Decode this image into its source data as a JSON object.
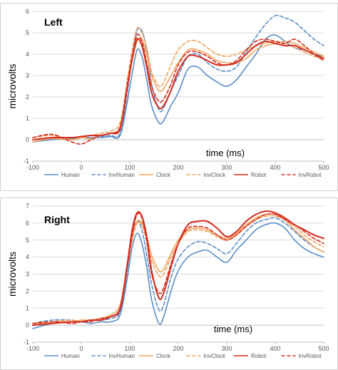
{
  "chart_data": [
    {
      "type": "line",
      "title": "Left",
      "xlabel": "time (ms)",
      "ylabel": "microvolts",
      "xlim": [
        -100,
        500
      ],
      "ylim": [
        -1,
        6
      ],
      "x_ticks": [
        "-100",
        "0",
        "100",
        "200",
        "300",
        "400",
        "500"
      ],
      "y_ticks": [
        "-1",
        "0",
        "1",
        "2",
        "3",
        "4",
        "5",
        "6"
      ],
      "grid": "horizontal",
      "legend_position": "bottom",
      "series": [
        {
          "name": "Human",
          "color": "#5b8ec7",
          "dash": "solid",
          "x": [
            -100,
            -60,
            -20,
            0,
            20,
            40,
            60,
            80,
            95,
            105,
            115,
            125,
            135,
            145,
            160,
            170,
            185,
            200,
            220,
            240,
            260,
            280,
            300,
            320,
            340,
            360,
            380,
            400,
            420,
            440,
            460,
            480,
            500
          ],
          "y": [
            -0.1,
            0,
            0.05,
            0.1,
            0.1,
            0.1,
            0.15,
            0.2,
            1.8,
            3.1,
            4.2,
            3.9,
            2.8,
            1.6,
            0.8,
            0.9,
            1.6,
            2.2,
            3.3,
            3.4,
            3.0,
            2.7,
            2.5,
            2.8,
            3.4,
            4.0,
            4.7,
            4.9,
            4.6,
            4.3,
            4.2,
            4.0,
            3.9
          ]
        },
        {
          "name": "InvHuman",
          "color": "#5b8ec7",
          "dash": "dashed",
          "x": [
            -100,
            -60,
            -20,
            0,
            20,
            40,
            60,
            80,
            95,
            105,
            115,
            125,
            135,
            145,
            160,
            170,
            185,
            200,
            220,
            240,
            260,
            280,
            300,
            320,
            340,
            360,
            380,
            400,
            420,
            440,
            460,
            480,
            500
          ],
          "y": [
            0,
            0.1,
            0.1,
            0.15,
            0.2,
            0.15,
            0.2,
            0.3,
            2.2,
            3.8,
            5.1,
            5.1,
            4.2,
            2.6,
            1.4,
            1.5,
            2.3,
            3.0,
            3.9,
            4.0,
            3.6,
            3.3,
            3.2,
            3.4,
            4.1,
            4.8,
            5.4,
            5.8,
            5.7,
            5.5,
            5.1,
            4.7,
            4.4
          ]
        },
        {
          "name": "Clock",
          "color": "#f0a45e",
          "dash": "solid",
          "x": [
            -100,
            -60,
            -20,
            0,
            20,
            40,
            60,
            80,
            95,
            105,
            115,
            125,
            135,
            145,
            160,
            170,
            185,
            200,
            220,
            240,
            260,
            280,
            300,
            320,
            340,
            360,
            380,
            400,
            420,
            440,
            460,
            480,
            500
          ],
          "y": [
            -0.1,
            0.05,
            0,
            0.1,
            0.05,
            0.2,
            0.3,
            0.6,
            2.4,
            3.7,
            4.6,
            4.7,
            4.0,
            3.0,
            2.3,
            2.4,
            3.0,
            3.6,
            4.2,
            4.2,
            4.0,
            3.7,
            3.6,
            3.6,
            3.8,
            4.2,
            4.4,
            4.5,
            4.6,
            4.5,
            4.3,
            4.1,
            3.9
          ]
        },
        {
          "name": "InvClock",
          "color": "#f0a45e",
          "dash": "dashed",
          "x": [
            -100,
            -60,
            -20,
            0,
            20,
            40,
            60,
            80,
            95,
            105,
            115,
            125,
            135,
            145,
            160,
            170,
            185,
            200,
            220,
            240,
            260,
            280,
            300,
            320,
            340,
            360,
            380,
            400,
            420,
            440,
            460,
            480,
            500
          ],
          "y": [
            0.1,
            0.2,
            0,
            0.1,
            0.2,
            0.3,
            0.4,
            0.8,
            2.8,
            4.2,
            5.2,
            5.0,
            4.3,
            3.2,
            2.5,
            2.7,
            3.5,
            4.2,
            4.6,
            4.6,
            4.3,
            4.0,
            3.9,
            4.0,
            4.2,
            4.4,
            4.5,
            4.6,
            4.5,
            4.3,
            4.1,
            3.9,
            3.8
          ]
        },
        {
          "name": "Robot",
          "color": "#d42b1e",
          "dash": "solid",
          "x": [
            -100,
            -60,
            -20,
            0,
            20,
            40,
            60,
            80,
            95,
            105,
            115,
            125,
            135,
            145,
            160,
            170,
            185,
            200,
            220,
            240,
            260,
            280,
            300,
            320,
            340,
            360,
            380,
            400,
            420,
            440,
            460,
            480,
            500
          ],
          "y": [
            0,
            0.1,
            0.1,
            0.15,
            0.2,
            0.2,
            0.3,
            0.5,
            2.5,
            3.8,
            4.7,
            4.4,
            3.4,
            2.2,
            1.5,
            1.6,
            2.3,
            3.2,
            3.9,
            3.9,
            3.7,
            3.5,
            3.5,
            3.6,
            4.0,
            4.4,
            4.6,
            4.5,
            4.4,
            4.4,
            4.2,
            4.0,
            3.8
          ]
        },
        {
          "name": "InvRobot",
          "color": "#d42b1e",
          "dash": "dashed",
          "x": [
            -100,
            -60,
            -20,
            0,
            20,
            40,
            60,
            80,
            95,
            105,
            115,
            125,
            135,
            145,
            160,
            170,
            185,
            200,
            220,
            240,
            260,
            280,
            300,
            320,
            340,
            360,
            380,
            400,
            420,
            440,
            460,
            480,
            500
          ],
          "y": [
            0.1,
            0.25,
            -0.1,
            -0.2,
            0,
            0.2,
            0.3,
            0.6,
            2.6,
            3.9,
            4.9,
            4.6,
            3.6,
            2.5,
            1.8,
            1.9,
            2.6,
            3.5,
            4.1,
            4.1,
            3.9,
            3.6,
            3.5,
            3.7,
            4.2,
            4.6,
            4.7,
            4.6,
            4.5,
            4.7,
            4.4,
            4.0,
            3.7
          ]
        }
      ]
    },
    {
      "type": "line",
      "title": "Right",
      "xlabel": "time (ms)",
      "ylabel": "microvolts",
      "xlim": [
        -100,
        500
      ],
      "ylim": [
        -1,
        7
      ],
      "x_ticks": [
        "-100",
        "0",
        "100",
        "200",
        "300",
        "400",
        "500"
      ],
      "y_ticks": [
        "-1",
        "0",
        "1",
        "2",
        "3",
        "4",
        "5",
        "6",
        "7"
      ],
      "grid": "horizontal",
      "legend_position": "bottom",
      "series": [
        {
          "name": "Human",
          "color": "#5b8ec7",
          "dash": "solid",
          "x": [
            -100,
            -60,
            -20,
            0,
            20,
            40,
            60,
            80,
            95,
            105,
            115,
            125,
            135,
            145,
            160,
            170,
            185,
            200,
            220,
            240,
            260,
            280,
            300,
            320,
            340,
            360,
            380,
            400,
            420,
            440,
            460,
            480,
            500
          ],
          "y": [
            -0.2,
            0.1,
            0.2,
            0.2,
            0.1,
            0.2,
            0.2,
            0.6,
            2.8,
            4.6,
            5.4,
            4.8,
            3.4,
            1.5,
            0.1,
            0.5,
            2.0,
            3.2,
            4.0,
            4.3,
            4.4,
            4.0,
            3.7,
            4.4,
            5.0,
            5.6,
            5.9,
            6.0,
            5.7,
            5.0,
            4.5,
            4.2,
            4.0
          ]
        },
        {
          "name": "InvHuman",
          "color": "#5b8ec7",
          "dash": "dashed",
          "x": [
            -100,
            -60,
            -20,
            0,
            20,
            40,
            60,
            80,
            95,
            105,
            115,
            125,
            135,
            145,
            160,
            170,
            185,
            200,
            220,
            240,
            260,
            280,
            300,
            320,
            340,
            360,
            380,
            400,
            420,
            440,
            460,
            480,
            500
          ],
          "y": [
            0.1,
            0.3,
            0.3,
            0.2,
            0.3,
            0.3,
            0.4,
            0.8,
            3.3,
            5.2,
            6.1,
            5.6,
            4.1,
            2.4,
            0.9,
            1.2,
            2.8,
            3.9,
            4.6,
            4.9,
            4.8,
            4.5,
            4.2,
            4.8,
            5.5,
            6.0,
            6.2,
            6.3,
            6.0,
            5.5,
            5.0,
            4.6,
            4.3
          ]
        },
        {
          "name": "Clock",
          "color": "#f0a45e",
          "dash": "solid",
          "x": [
            -100,
            -60,
            -20,
            0,
            20,
            40,
            60,
            80,
            95,
            105,
            115,
            125,
            135,
            145,
            160,
            170,
            185,
            200,
            220,
            240,
            260,
            280,
            300,
            320,
            340,
            360,
            380,
            400,
            420,
            440,
            460,
            480,
            500
          ],
          "y": [
            0.1,
            0.2,
            0.2,
            0.3,
            0.3,
            0.4,
            0.6,
            1.2,
            3.6,
            5.2,
            6.1,
            6.0,
            5.2,
            4.1,
            3.2,
            3.3,
            4.2,
            5.0,
            5.6,
            5.7,
            5.6,
            5.3,
            5.1,
            5.4,
            5.9,
            6.3,
            6.5,
            6.5,
            6.2,
            5.6,
            5.1,
            4.6,
            4.3
          ]
        },
        {
          "name": "InvClock",
          "color": "#f0a45e",
          "dash": "dashed",
          "x": [
            -100,
            -60,
            -20,
            0,
            20,
            40,
            60,
            80,
            95,
            105,
            115,
            125,
            135,
            145,
            160,
            170,
            185,
            200,
            220,
            240,
            260,
            280,
            300,
            320,
            340,
            360,
            380,
            400,
            420,
            440,
            460,
            480,
            500
          ],
          "y": [
            0,
            0.2,
            0.3,
            0.2,
            0.3,
            0.4,
            0.5,
            1.0,
            3.4,
            5.0,
            6.0,
            5.9,
            5.0,
            3.8,
            2.9,
            3.0,
            4.0,
            4.8,
            5.5,
            5.6,
            5.5,
            5.2,
            5.0,
            5.3,
            5.8,
            6.2,
            6.4,
            6.4,
            6.2,
            5.8,
            5.3,
            4.9,
            4.6
          ]
        },
        {
          "name": "Robot",
          "color": "#d42b1e",
          "dash": "solid",
          "x": [
            -100,
            -60,
            -20,
            0,
            20,
            40,
            60,
            80,
            95,
            105,
            115,
            125,
            135,
            145,
            160,
            170,
            185,
            200,
            220,
            240,
            260,
            280,
            300,
            320,
            340,
            360,
            380,
            400,
            420,
            440,
            460,
            480,
            500
          ],
          "y": [
            0,
            0.1,
            0.2,
            0.2,
            0.3,
            0.3,
            0.5,
            1.0,
            3.6,
            5.6,
            6.6,
            6.4,
            5.2,
            3.2,
            1.6,
            1.9,
            3.4,
            4.8,
            5.9,
            6.1,
            6.1,
            5.7,
            5.2,
            5.5,
            6.1,
            6.5,
            6.7,
            6.6,
            6.3,
            5.9,
            5.6,
            5.3,
            5.1
          ]
        },
        {
          "name": "InvRobot",
          "color": "#d42b1e",
          "dash": "dashed",
          "x": [
            -100,
            -60,
            -20,
            0,
            20,
            40,
            60,
            80,
            95,
            105,
            115,
            125,
            135,
            145,
            160,
            170,
            185,
            200,
            220,
            240,
            260,
            280,
            300,
            320,
            340,
            360,
            380,
            400,
            420,
            440,
            460,
            480,
            500
          ],
          "y": [
            0.1,
            0.2,
            0.1,
            0.2,
            0.2,
            0.4,
            0.5,
            0.9,
            3.4,
            5.3,
            6.5,
            6.3,
            4.9,
            3.0,
            1.9,
            2.2,
            3.6,
            4.8,
            5.7,
            5.8,
            5.7,
            5.3,
            5.0,
            5.3,
            5.8,
            6.2,
            6.5,
            6.5,
            6.2,
            5.9,
            5.5,
            5.1,
            4.8
          ]
        }
      ]
    }
  ]
}
